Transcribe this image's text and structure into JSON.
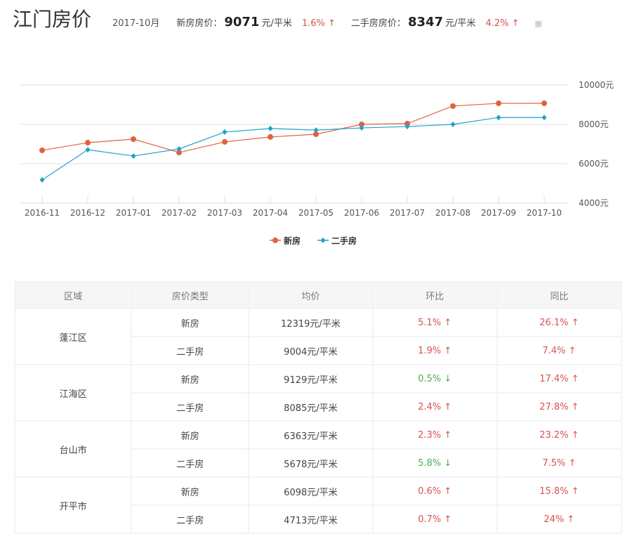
{
  "header": {
    "title": "江门房价",
    "date": "2017-10月",
    "new_label": "新房房价：",
    "new_price": "9071",
    "unit": "元/平米",
    "new_change": "1.6% ↑",
    "second_label": "二手房房价：",
    "second_price": "8347",
    "second_change": "4.2% ↑"
  },
  "chart_data": {
    "type": "line",
    "categories": [
      "2016-11",
      "2016-12",
      "2017-01",
      "2017-02",
      "2017-03",
      "2017-04",
      "2017-05",
      "2017-06",
      "2017-07",
      "2017-08",
      "2017-09",
      "2017-10"
    ],
    "ylim": [
      4000,
      10000
    ],
    "yticks": [
      "4000元",
      "6000元",
      "8000元",
      "10000元"
    ],
    "grid": true,
    "legend_position": "bottom",
    "series": [
      {
        "name": "新房",
        "color": "#e0623f",
        "marker": "circle",
        "values": [
          6680,
          7070,
          7250,
          6570,
          7110,
          7360,
          7500,
          8000,
          8040,
          8930,
          9070,
          9071
        ]
      },
      {
        "name": "二手房",
        "color": "#1fa3c9",
        "marker": "diamond",
        "values": [
          5180,
          6710,
          6390,
          6750,
          7610,
          7790,
          7710,
          7820,
          7890,
          8000,
          8350,
          8347
        ]
      }
    ]
  },
  "table": {
    "headers": [
      "区域",
      "房价类型",
      "均价",
      "环比",
      "同比"
    ],
    "rows": [
      {
        "region": "蓬江区",
        "items": [
          {
            "type": "新房",
            "price": "12319元/平米",
            "mom": "5.1% ↑",
            "mom_dir": "up",
            "yoy": "26.1% ↑"
          },
          {
            "type": "二手房",
            "price": "9004元/平米",
            "mom": "1.9% ↑",
            "mom_dir": "up",
            "yoy": "7.4% ↑"
          }
        ]
      },
      {
        "region": "江海区",
        "items": [
          {
            "type": "新房",
            "price": "9129元/平米",
            "mom": "0.5% ↓",
            "mom_dir": "down",
            "yoy": "17.4% ↑"
          },
          {
            "type": "二手房",
            "price": "8085元/平米",
            "mom": "2.4% ↑",
            "mom_dir": "up",
            "yoy": "27.8% ↑"
          }
        ]
      },
      {
        "region": "台山市",
        "items": [
          {
            "type": "新房",
            "price": "6363元/平米",
            "mom": "2.3% ↑",
            "mom_dir": "up",
            "yoy": "23.2% ↑"
          },
          {
            "type": "二手房",
            "price": "5678元/平米",
            "mom": "5.8% ↓",
            "mom_dir": "down",
            "yoy": "7.5% ↑"
          }
        ]
      },
      {
        "region": "开平市",
        "items": [
          {
            "type": "新房",
            "price": "6098元/平米",
            "mom": "0.6% ↑",
            "mom_dir": "up",
            "yoy": "15.8% ↑"
          },
          {
            "type": "二手房",
            "price": "4713元/平米",
            "mom": "0.7% ↑",
            "mom_dir": "up",
            "yoy": "24% ↑"
          }
        ]
      }
    ]
  }
}
